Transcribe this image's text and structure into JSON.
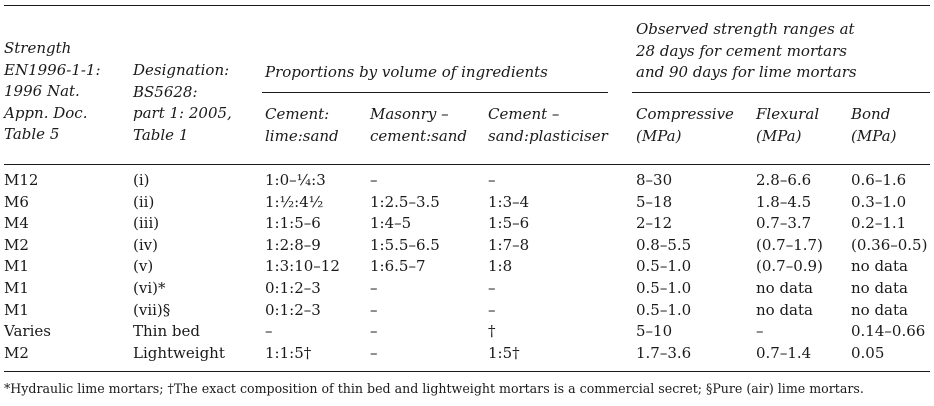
{
  "header": {
    "strength": [
      "Strength",
      "EN1996-1-1:",
      "1996 Nat.",
      "Appn. Doc.",
      "Table 5"
    ],
    "designation": [
      "Designation:",
      "BS5628:",
      "part 1: 2005,",
      "Table 1"
    ],
    "proportions": "Proportions by volume of ingredients",
    "observed": [
      "Observed strength ranges at",
      "28 days for cement mortars",
      "and 90 days for lime mortars"
    ],
    "cement_lime_sand": [
      "Cement:",
      "lime:sand"
    ],
    "masonry_cement_sand": [
      "Masonry –",
      "cement:sand"
    ],
    "cement_sand_plasticiser": [
      "Cement –",
      "sand:plasticiser"
    ],
    "compressive": [
      "Compressive",
      "(MPa)"
    ],
    "flexural": [
      "Flexural",
      "(MPa)"
    ],
    "bond": [
      "Bond",
      "(MPa)"
    ]
  },
  "rows": [
    [
      "M12",
      "(i)",
      "1:0–¼:3",
      "–",
      "–",
      "8–30",
      "2.8–6.6",
      "0.6–1.6"
    ],
    [
      "M6",
      "(ii)",
      "1:½:4½",
      "1:2.5–3.5",
      "1:3–4",
      "5–18",
      "1.8–4.5",
      "0.3–1.0"
    ],
    [
      "M4",
      "(iii)",
      "1:1:5–6",
      "1:4–5",
      "1:5–6",
      "2–12",
      "0.7–3.7",
      "0.2–1.1"
    ],
    [
      "M2",
      "(iv)",
      "1:2:8–9",
      "1:5.5–6.5",
      "1:7–8",
      "0.8–5.5",
      "(0.7–1.7)",
      "(0.36–0.5)"
    ],
    [
      "M1",
      "(v)",
      "1:3:10–12",
      "1:6.5–7",
      "1:8",
      "0.5–1.0",
      "(0.7–0.9)",
      "no data"
    ],
    [
      "M1",
      "(vi)*",
      "0:1:2–3",
      "–",
      "–",
      "0.5–1.0",
      "no data",
      "no data"
    ],
    [
      "M1",
      "(vii)§",
      "0:1:2–3",
      "–",
      "–",
      "0.5–1.0",
      "no data",
      "no data"
    ],
    [
      "Varies",
      "Thin bed",
      "–",
      "–",
      "†",
      "5–10",
      "–",
      "0.14–0.66"
    ],
    [
      "M2",
      "Lightweight",
      "1:1:5†",
      "–",
      "1:5†",
      "1.7–3.6",
      "0.7–1.4",
      "0.05"
    ]
  ],
  "footnote": "*Hydraulic lime mortars; †The exact composition of thin bed and lightweight mortars is a commercial secret; §Pure (air) lime mortars."
}
